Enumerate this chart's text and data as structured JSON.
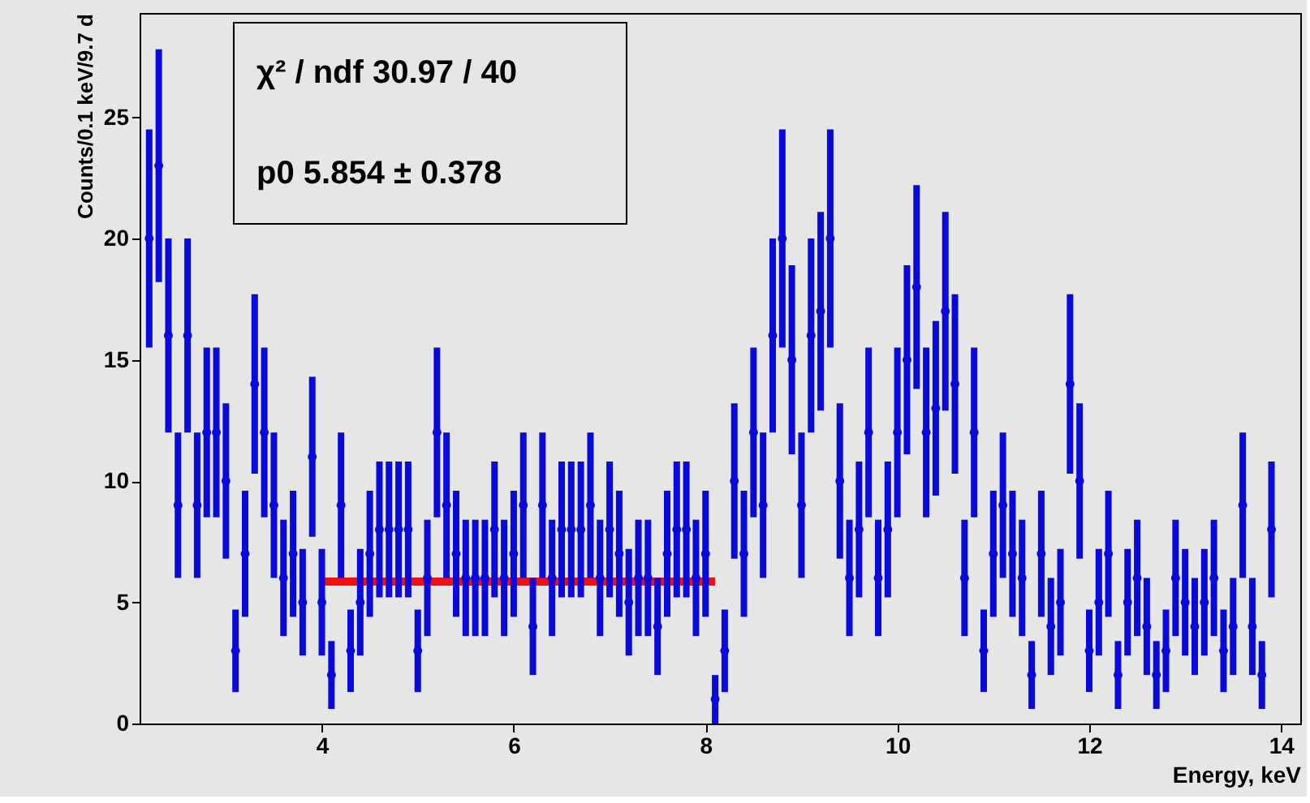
{
  "chart_data": {
    "type": "scatter",
    "xlabel": "Energy, keV",
    "ylabel": "Counts/0.1 keV/9.7 d",
    "xlim": [
      2.1,
      14.2
    ],
    "xticks": [
      {
        "value": 4,
        "label": "4"
      },
      {
        "value": 6,
        "label": "6"
      },
      {
        "value": 8,
        "label": "8"
      },
      {
        "value": 10,
        "label": "10"
      },
      {
        "value": 12,
        "label": "12"
      },
      {
        "value": 14,
        "label": "14"
      }
    ],
    "ylim": [
      0,
      29.3
    ],
    "yticks": [
      0,
      5,
      10,
      15,
      20,
      25
    ],
    "grid": false,
    "annotations": [
      "χ² / ndf      30.97 / 40",
      "p0         5.854 ± 0.378"
    ],
    "series": [
      {
        "type": "scatter",
        "color": "#0a0ad8",
        "marker": "circle",
        "x": [
          2.2,
          2.3,
          2.4,
          2.5,
          2.6,
          2.7,
          2.8,
          2.9,
          3.0,
          3.1,
          3.2,
          3.3,
          3.4,
          3.5,
          3.6,
          3.7,
          3.8,
          3.9,
          4.0,
          4.1,
          4.2,
          4.3,
          4.4,
          4.5,
          4.6,
          4.7,
          4.8,
          4.9,
          5.0,
          5.1,
          5.2,
          5.3,
          5.4,
          5.5,
          5.6,
          5.7,
          5.8,
          5.9,
          6.0,
          6.1,
          6.2,
          6.3,
          6.4,
          6.5,
          6.6,
          6.7,
          6.8,
          6.9,
          7.0,
          7.1,
          7.2,
          7.3,
          7.4,
          7.5,
          7.6,
          7.7,
          7.8,
          7.9,
          8.0,
          8.1,
          8.2,
          8.3,
          8.4,
          8.5,
          8.6,
          8.7,
          8.8,
          8.9,
          9.0,
          9.1,
          9.2,
          9.3,
          9.4,
          9.5,
          9.6,
          9.7,
          9.8,
          9.9,
          10.0,
          10.1,
          10.2,
          10.3,
          10.4,
          10.5,
          10.6,
          10.7,
          10.8,
          10.9,
          11.0,
          11.1,
          11.2,
          11.3,
          11.4,
          11.5,
          11.6,
          11.7,
          11.8,
          11.9,
          12.0,
          12.1,
          12.2,
          12.3,
          12.4,
          12.5,
          12.6,
          12.7,
          12.8,
          12.9,
          13.0,
          13.1,
          13.2,
          13.3,
          13.4,
          13.5,
          13.6,
          13.7,
          13.8,
          13.9
        ],
        "values": [
          20,
          23,
          16,
          9,
          16,
          9,
          12,
          12,
          10,
          3,
          7,
          14,
          12,
          9,
          6,
          7,
          5,
          11,
          5,
          2,
          9,
          3,
          5,
          7,
          8,
          8,
          8,
          8,
          3,
          6,
          12,
          9,
          7,
          6,
          6,
          6,
          8,
          6,
          7,
          9,
          4,
          9,
          6,
          8,
          8,
          8,
          9,
          6,
          8,
          7,
          5,
          6,
          6,
          4,
          7,
          8,
          8,
          6,
          7,
          1,
          3,
          10,
          7,
          12,
          9,
          16,
          20,
          15,
          9,
          16,
          17,
          20,
          10,
          6,
          8,
          12,
          6,
          8,
          12,
          15,
          18,
          12,
          13,
          17,
          14,
          6,
          12,
          3,
          7,
          9,
          7,
          6,
          2,
          7,
          4,
          5,
          14,
          10,
          3,
          5,
          7,
          2,
          5,
          6,
          4,
          2,
          3,
          6,
          5,
          4,
          5,
          6,
          3,
          4,
          9,
          4,
          2,
          8
        ],
        "errors": [
          4.5,
          4.8,
          4,
          3,
          4,
          3,
          3.5,
          3.5,
          3.2,
          1.7,
          2.6,
          3.7,
          3.5,
          3,
          2.4,
          2.6,
          2.2,
          3.3,
          2.2,
          1.4,
          3,
          1.7,
          2.2,
          2.6,
          2.8,
          2.8,
          2.8,
          2.8,
          1.7,
          2.4,
          3.5,
          3,
          2.6,
          2.4,
          2.4,
          2.4,
          2.8,
          2.4,
          2.6,
          3,
          2,
          3,
          2.4,
          2.8,
          2.8,
          2.8,
          3,
          2.4,
          2.8,
          2.6,
          2.2,
          2.4,
          2.4,
          2,
          2.6,
          2.8,
          2.8,
          2.4,
          2.6,
          1,
          1.7,
          3.2,
          2.6,
          3.5,
          3,
          4,
          4.5,
          3.9,
          3,
          4,
          4.1,
          4.5,
          3.2,
          2.4,
          2.8,
          3.5,
          2.4,
          2.8,
          3.5,
          3.9,
          4.2,
          3.5,
          3.6,
          4.1,
          3.7,
          2.4,
          3.5,
          1.7,
          2.6,
          3,
          2.6,
          2.4,
          1.4,
          2.6,
          2,
          2.2,
          3.7,
          3.2,
          1.7,
          2.2,
          2.6,
          1.4,
          2.2,
          2.4,
          2,
          1.4,
          1.7,
          2.4,
          2.2,
          2,
          2.2,
          2.4,
          1.7,
          2,
          3,
          2,
          1.4,
          2.8
        ]
      },
      {
        "type": "line",
        "color": "#ee1111",
        "x": [
          4.0,
          8.1
        ],
        "values": [
          5.854,
          5.854
        ]
      }
    ]
  }
}
